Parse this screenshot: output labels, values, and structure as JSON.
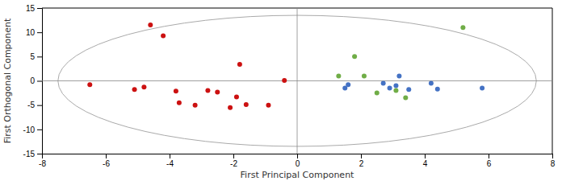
{
  "chart_data": {
    "type": "scatter",
    "xlabel": "First Principal Component",
    "ylabel": "First Orthogonal Component",
    "series": [
      {
        "color": "#cc1111",
        "x": [
          -4.6,
          -4.2,
          -6.5,
          -5.1,
          -4.8,
          -3.8,
          -3.7,
          -3.2,
          -2.8,
          -2.5,
          -2.1,
          -1.9,
          -1.6,
          -1.8,
          -0.9,
          -0.4
        ],
        "values": [
          11.5,
          9.3,
          -0.8,
          -1.8,
          -1.3,
          -2.1,
          -4.5,
          -5.0,
          -2.0,
          -2.3,
          -5.5,
          -3.3,
          -4.9,
          3.4,
          -5.0,
          0.1
        ]
      },
      {
        "color": "#4472c4",
        "x": [
          1.5,
          1.6,
          2.7,
          2.9,
          3.1,
          3.2,
          3.5,
          4.2,
          4.4,
          5.8
        ],
        "values": [
          -1.5,
          -0.8,
          -0.5,
          -1.5,
          -1.0,
          1.0,
          -1.8,
          -0.5,
          -1.7,
          -1.5
        ]
      },
      {
        "color": "#70ad47",
        "x": [
          1.3,
          1.8,
          2.1,
          2.5,
          3.1,
          3.4,
          5.2
        ],
        "values": [
          1.0,
          5.0,
          1.0,
          -2.5,
          -2.0,
          -3.5,
          11.0
        ]
      }
    ],
    "ellipse": {
      "center": [
        0.0,
        0.0
      ],
      "semi_axes": [
        7.5,
        13.5
      ]
    },
    "reference_lines": {
      "x": [
        0
      ],
      "y": [
        0
      ]
    },
    "xlim": [
      -8,
      8
    ],
    "ylim": [
      -15,
      15
    ],
    "xticks": [
      -8,
      -6,
      -4,
      -2,
      0,
      2,
      4,
      6,
      8
    ],
    "yticks": [
      -15,
      -10,
      -5,
      0,
      5,
      10,
      15
    ],
    "grid": false
  }
}
